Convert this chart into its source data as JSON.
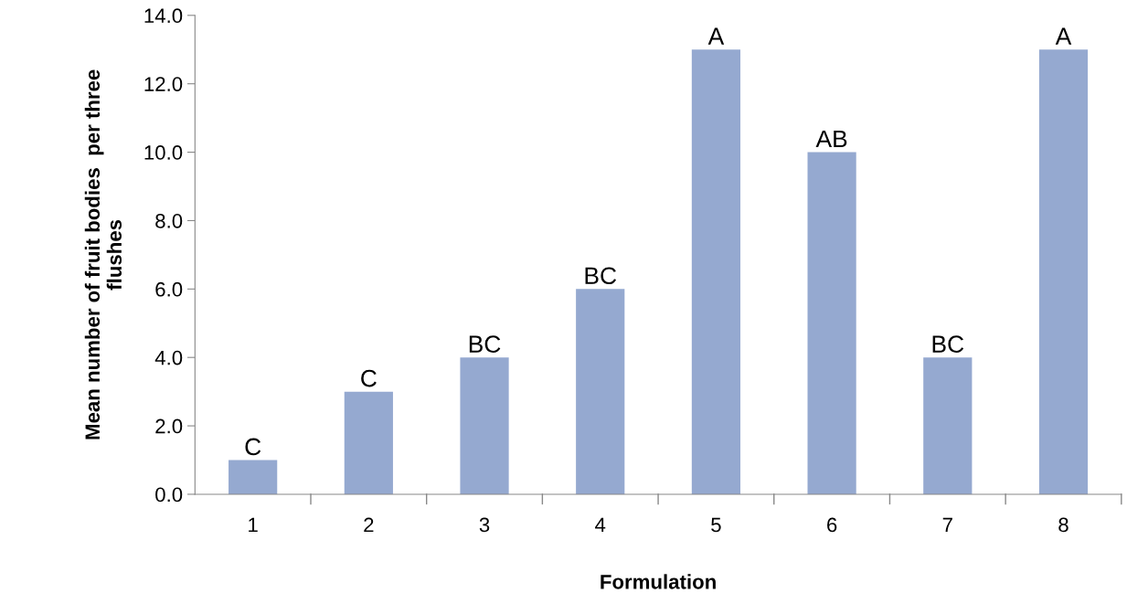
{
  "chart_data": {
    "type": "bar",
    "xlabel": "Formulation",
    "ylabel": "Mean number of fruit bodies  per three\nflushes",
    "categories": [
      "1",
      "2",
      "3",
      "4",
      "5",
      "6",
      "7",
      "8"
    ],
    "values": [
      1,
      3,
      4,
      6,
      13,
      10,
      4,
      13
    ],
    "value_labels": [
      "C",
      "C",
      "BC",
      "BC",
      "A",
      "AB",
      "BC",
      "A"
    ],
    "color": "#95a9d0",
    "ylim": [
      0,
      14
    ],
    "yticks": [
      {
        "value": 0,
        "label": "0.0"
      },
      {
        "value": 2,
        "label": "2.0"
      },
      {
        "value": 4,
        "label": "4.0"
      },
      {
        "value": 6,
        "label": "6.0"
      },
      {
        "value": 8,
        "label": "8.0"
      },
      {
        "value": 10,
        "label": "10.0"
      },
      {
        "value": 12,
        "label": "12.0"
      },
      {
        "value": 14,
        "label": "14.0"
      }
    ],
    "grid": false,
    "legend": false
  }
}
